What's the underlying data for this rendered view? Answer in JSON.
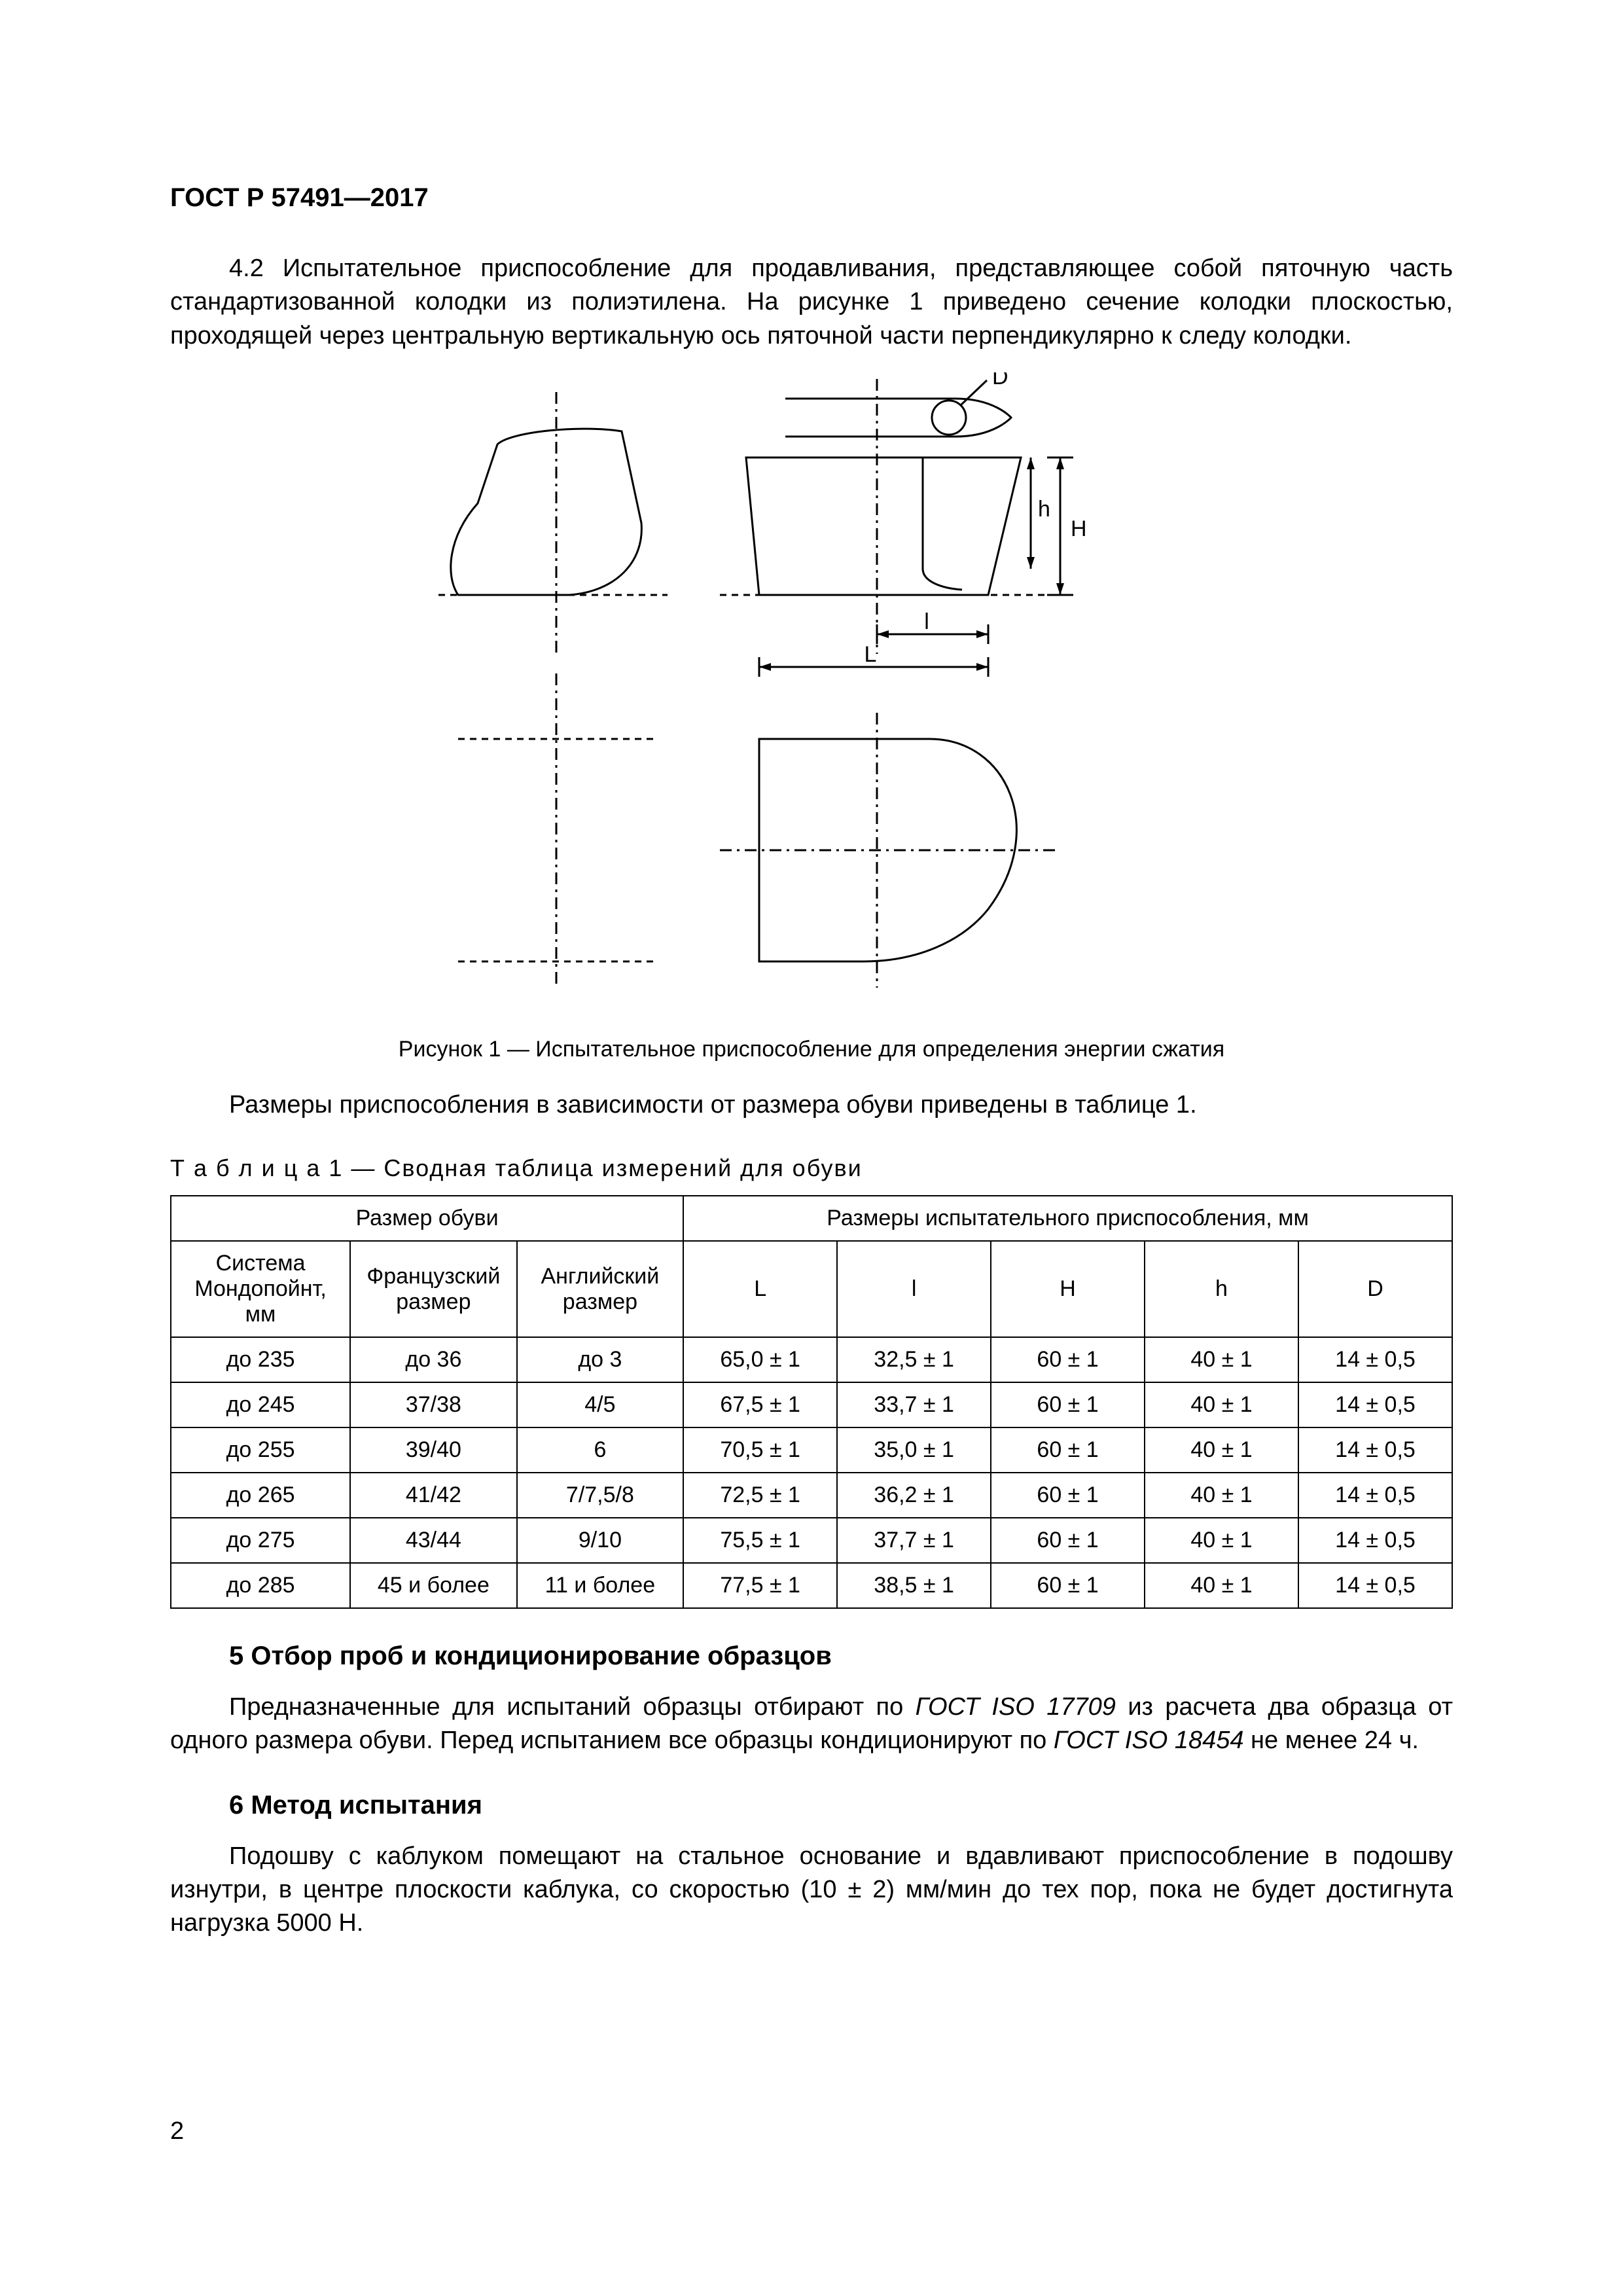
{
  "doc_header": "ГОСТ Р 57491—2017",
  "para_4_2": "4.2 Испытательное приспособление для продавливания, представляющее собой пяточную часть стандартизованной колодки из полиэтилена. На рисунке 1 приведено сечение колодки плоскостью, проходящей через центральную вертикальную ось пяточной части перпендикулярно к следу колодки.",
  "figure": {
    "label_D": "D",
    "label_h": "h",
    "label_H": "H",
    "label_l": "l",
    "label_L": "L",
    "caption": "Рисунок 1 — Испытательное приспособление для определения энергии сжатия"
  },
  "para_sizes": "Размеры приспособления в зависимости от размера обуви приведены в таблице 1.",
  "table": {
    "caption": "Т а б л и ц а   1 — Сводная таблица измерений для обуви",
    "header_top_left": "Размер обуви",
    "header_top_right": "Размеры испытательного приспособления, мм",
    "cols": [
      "Система Мондопойнт, мм",
      "Французский размер",
      "Английский размер",
      "L",
      "l",
      "H",
      "h",
      "D"
    ],
    "rows": [
      [
        "до 235",
        "до 36",
        "до 3",
        "65,0 ± 1",
        "32,5 ± 1",
        "60 ± 1",
        "40 ± 1",
        "14 ± 0,5"
      ],
      [
        "до 245",
        "37/38",
        "4/5",
        "67,5 ± 1",
        "33,7 ± 1",
        "60 ± 1",
        "40 ± 1",
        "14 ± 0,5"
      ],
      [
        "до 255",
        "39/40",
        "6",
        "70,5 ± 1",
        "35,0 ± 1",
        "60 ± 1",
        "40 ± 1",
        "14 ± 0,5"
      ],
      [
        "до 265",
        "41/42",
        "7/7,5/8",
        "72,5 ± 1",
        "36,2 ± 1",
        "60 ± 1",
        "40 ± 1",
        "14 ± 0,5"
      ],
      [
        "до 275",
        "43/44",
        "9/10",
        "75,5 ± 1",
        "37,7 ± 1",
        "60 ± 1",
        "40 ± 1",
        "14 ± 0,5"
      ],
      [
        "до 285",
        "45 и более",
        "11 и более",
        "77,5 ± 1",
        "38,5 ± 1",
        "60 ± 1",
        "40 ± 1",
        "14 ± 0,5"
      ]
    ]
  },
  "section5_heading": "5  Отбор проб и кондиционирование образцов",
  "section5_para_a": "Предназначенные для испытаний образцы отбирают по ",
  "section5_ref1": "ГОСТ ISO 17709",
  "section5_para_b": " из расчета два образца от одного размера обуви. Перед испытанием все образцы кондиционируют по ",
  "section5_ref2": "ГОСТ ISO 18454",
  "section5_para_c": " не менее 24 ч.",
  "section6_heading": "6  Метод испытания",
  "section6_para": "Подошву с каблуком помещают на стальное основание и вдавливают приспособление в подошву изнутри, в центре плоскости каблука, со скоростью (10 ± 2) мм/мин до тех пор, пока не будет достигнута нагрузка 5000 Н.",
  "page_number": "2",
  "colors": {
    "text": "#000000",
    "bg": "#ffffff",
    "line": "#000000"
  }
}
